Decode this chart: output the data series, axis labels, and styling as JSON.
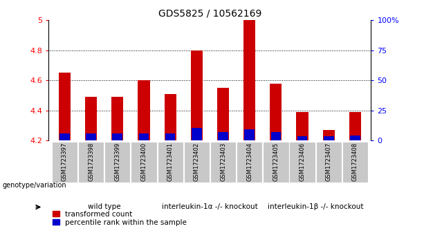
{
  "title": "GDS5825 / 10562169",
  "samples": [
    "GSM1723397",
    "GSM1723398",
    "GSM1723399",
    "GSM1723400",
    "GSM1723401",
    "GSM1723402",
    "GSM1723403",
    "GSM1723404",
    "GSM1723405",
    "GSM1723406",
    "GSM1723407",
    "GSM1723408"
  ],
  "red_values": [
    4.65,
    4.49,
    4.49,
    4.6,
    4.51,
    4.8,
    4.55,
    5.0,
    4.58,
    4.39,
    4.27,
    4.39
  ],
  "blue_values": [
    4.245,
    4.245,
    4.245,
    4.245,
    4.245,
    4.285,
    4.255,
    4.275,
    4.255,
    4.23,
    4.23,
    4.235
  ],
  "red_color": "#cc0000",
  "blue_color": "#0000cc",
  "bar_base": 4.2,
  "ylim_left": [
    4.2,
    5.0
  ],
  "ylim_right": [
    0,
    100
  ],
  "yticks_left": [
    4.2,
    4.4,
    4.6,
    4.8,
    5.0
  ],
  "ytick_labels_left": [
    "4.2",
    "4.4",
    "4.6",
    "4.8",
    "5"
  ],
  "yticks_right": [
    0,
    25,
    50,
    75,
    100
  ],
  "ytick_labels_right": [
    "0",
    "25",
    "50",
    "75",
    "100%"
  ],
  "grid_values": [
    4.4,
    4.6,
    4.8
  ],
  "groups": [
    {
      "label": "wild type",
      "start": 0,
      "end": 3,
      "color": "#ccffcc"
    },
    {
      "label": "interleukin-1α -/- knockout",
      "start": 4,
      "end": 7,
      "color": "#66ee66"
    },
    {
      "label": "interleukin-1β -/- knockout",
      "start": 8,
      "end": 11,
      "color": "#22cc22"
    }
  ],
  "group_row_label": "genotype/variation",
  "legend_red": "transformed count",
  "legend_blue": "percentile rank within the sample",
  "bg_sample_row": "#c8c8c8",
  "bar_width": 0.45,
  "title_fontsize": 10,
  "tick_fontsize": 8,
  "sample_fontsize": 6,
  "group_fontsize": 7.5,
  "legend_fontsize": 7.5
}
